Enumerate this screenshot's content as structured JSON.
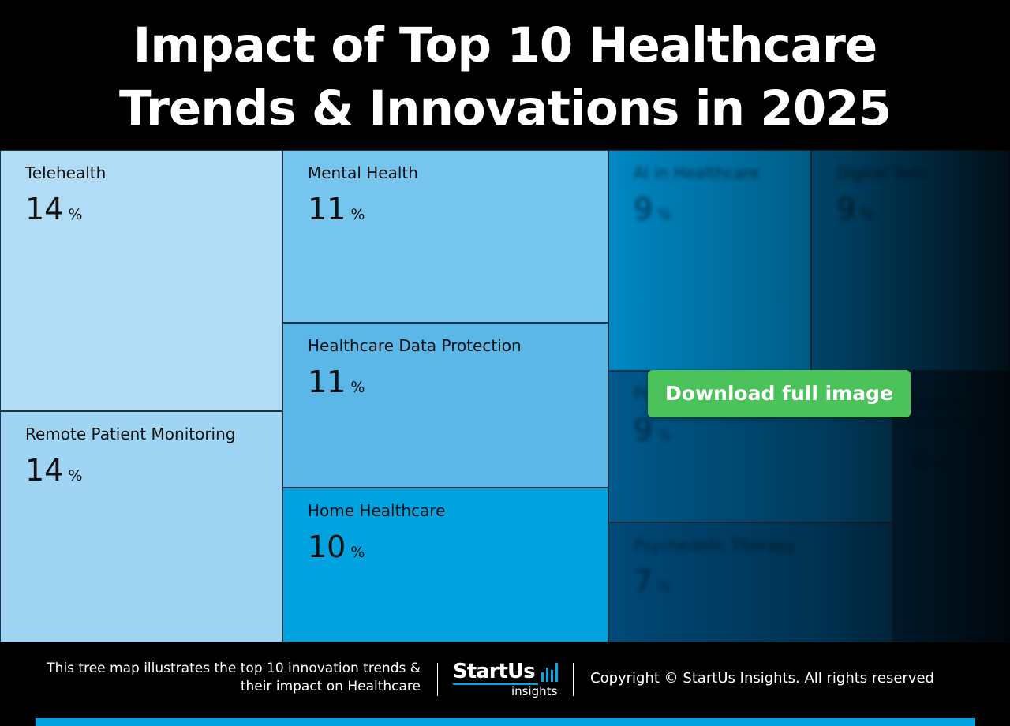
{
  "title_lines": [
    "Impact of Top 10 Healthcare",
    "Trends & Innovations in 2025"
  ],
  "percent_sign": "%",
  "chart_data": {
    "type": "treemap",
    "title": "Impact of Top 10 Healthcare Trends & Innovations in 2025",
    "unit": "%",
    "items": [
      {
        "label": "Telehealth",
        "value": 14,
        "color": "#b0dcf6",
        "blurred": false
      },
      {
        "label": "Remote Patient Monitoring",
        "value": 14,
        "color": "#9fd4f3",
        "blurred": false
      },
      {
        "label": "Mental Health",
        "value": 11,
        "color": "#75c5ee",
        "blurred": false
      },
      {
        "label": "Healthcare Data Protection",
        "value": 11,
        "color": "#5ab7e8",
        "blurred": false
      },
      {
        "label": "Home Healthcare",
        "value": 10,
        "color": "#00a3e0",
        "blurred": false
      },
      {
        "label": "AI in Healthcare",
        "value": 9,
        "color": "#0088c4",
        "blurred": true
      },
      {
        "label": "Digital Twin",
        "value": 9,
        "color": "#00649a",
        "blurred": true
      },
      {
        "label": "Precision Medicine",
        "value": 9,
        "color": "#005a8c",
        "blurred": true
      },
      {
        "label": "Genetic Screening",
        "value": 6,
        "color": "#003356",
        "blurred": true
      },
      {
        "label": "Psychedelic Therapy",
        "value": 7,
        "color": "#004a78",
        "blurred": true
      }
    ]
  },
  "download_button": {
    "label": "Download full image",
    "color": "#4cc35a"
  },
  "footer": {
    "caption_lines": [
      "This tree map illustrates the top 10 innovation trends &",
      "their impact on Healthcare"
    ],
    "logo_word": "StartUs",
    "logo_sub": "insights",
    "copyright": "Copyright © StartUs Insights. All rights reserved"
  },
  "colors": {
    "accent": "#00a3e0",
    "background": "#000000"
  }
}
